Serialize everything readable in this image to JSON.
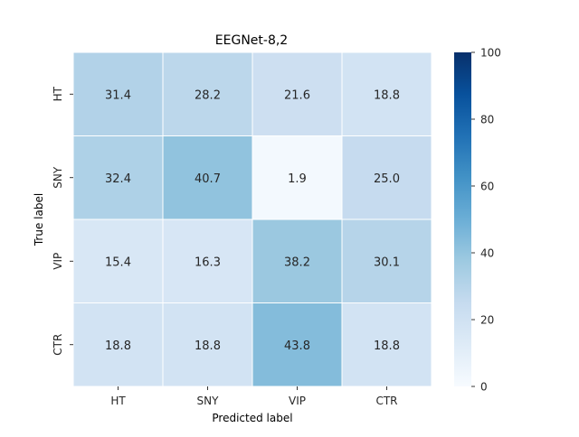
{
  "chart_data": {
    "type": "heatmap",
    "title": "EEGNet-8,2",
    "xlabel": "Predicted label",
    "ylabel": "True label",
    "x_categories": [
      "HT",
      "SNY",
      "VIP",
      "CTR"
    ],
    "y_categories": [
      "HT",
      "SNY",
      "VIP",
      "CTR"
    ],
    "values": [
      [
        31.4,
        28.2,
        21.6,
        18.8
      ],
      [
        32.4,
        40.7,
        1.9,
        25.0
      ],
      [
        15.4,
        16.3,
        38.2,
        30.1
      ],
      [
        18.8,
        18.8,
        43.8,
        18.8
      ]
    ],
    "value_format": "0.0",
    "colormap": "Blues",
    "vmin": 0,
    "vmax": 100,
    "colorbar_ticks": [
      0,
      20,
      40,
      60,
      80,
      100
    ],
    "cell_border_color": "#ffffff"
  }
}
